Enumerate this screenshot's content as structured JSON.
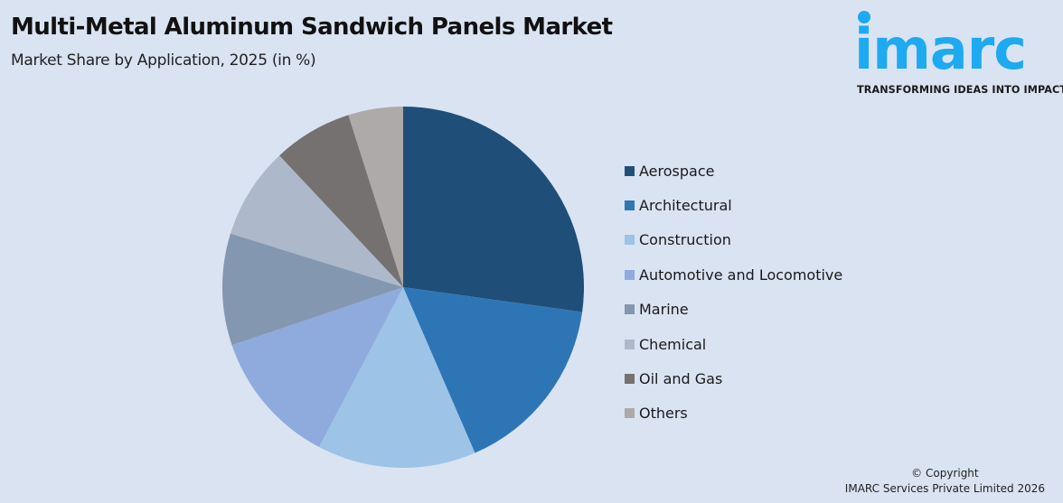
{
  "header": {
    "title": "Multi-Metal Aluminum Sandwich Panels Market",
    "subtitle": "Market Share by Application, 2025 (in %)"
  },
  "logo": {
    "word": "imarc",
    "tagline": "TRANSFORMING IDEAS INTO IMPACT",
    "color": "#1eaaf1"
  },
  "footer": {
    "copyright_line1": "© Copyright",
    "copyright_line2": "IMARC Services Private Limited 2026"
  },
  "chart_data": {
    "type": "pie",
    "title": "Multi-Metal Aluminum Sandwich Panels Market",
    "subtitle": "Market Share by Application, 2025 (in %)",
    "categories": [
      "Aerospace",
      "Architectural",
      "Construction",
      "Automotive and Locomotive",
      "Marine",
      "Chemical",
      "Oil and Gas",
      "Others"
    ],
    "values": [
      27.2,
      16.3,
      14.2,
      12.1,
      10.0,
      8.2,
      7.1,
      4.9
    ],
    "colors": [
      "#1f4e79",
      "#2e75b6",
      "#9dc3e6",
      "#8faadc",
      "#8497b0",
      "#adb9ca",
      "#767171",
      "#aeaaaa"
    ],
    "start_angle_deg": 0,
    "direction": "clockwise",
    "data_labels": false,
    "legend_position": "right"
  }
}
